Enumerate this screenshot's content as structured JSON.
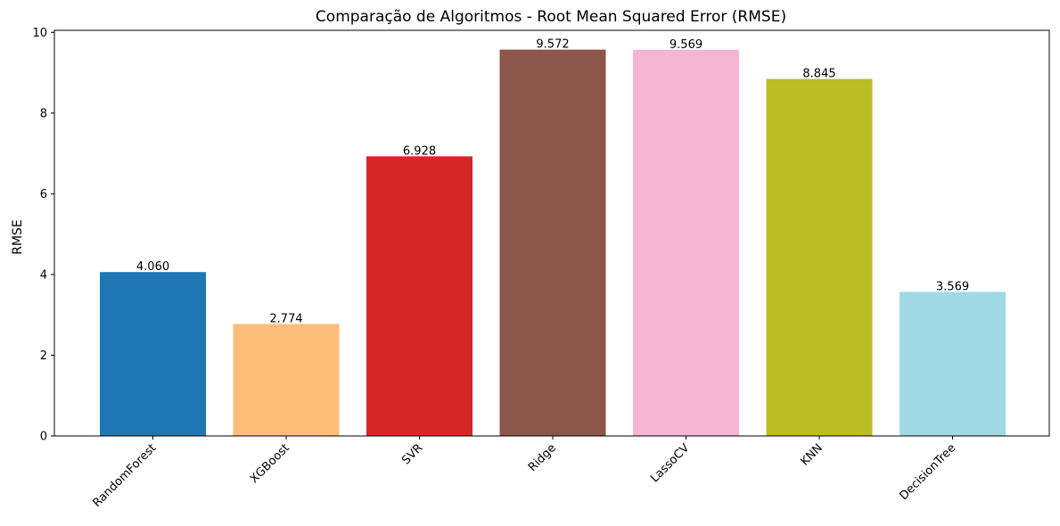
{
  "chart_data": {
    "type": "bar",
    "title": "Comparação de Algoritmos - Root Mean Squared Error (RMSE)",
    "xlabel": "",
    "ylabel": "RMSE",
    "ylim": [
      0,
      10.05
    ],
    "yticks": [
      "0",
      "2",
      "4",
      "6",
      "8",
      "10"
    ],
    "categories": [
      "RandomForest",
      "XGBoost",
      "SVR",
      "Ridge",
      "LassoCV",
      "KNN",
      "DecisionTree"
    ],
    "values": [
      4.06,
      2.774,
      6.928,
      9.572,
      9.569,
      8.845,
      3.569
    ],
    "value_labels": [
      "4.060",
      "2.774",
      "6.928",
      "9.572",
      "9.569",
      "8.845",
      "3.569"
    ],
    "colors": [
      "#1f77b4",
      "#ffbd7a",
      "#d62728",
      "#8c564b",
      "#f5b6d2",
      "#bcbd22",
      "#9fdae5"
    ],
    "grid": false,
    "legend": "none"
  }
}
